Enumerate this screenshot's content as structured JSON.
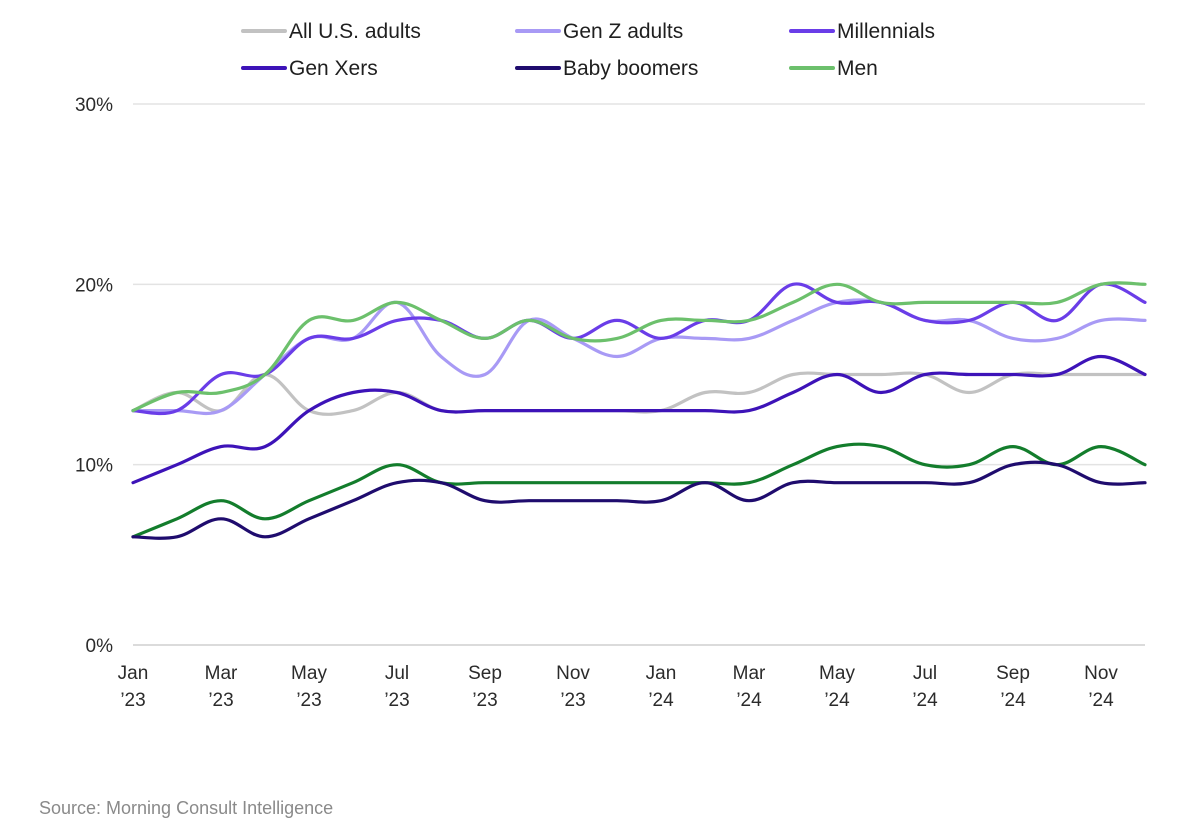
{
  "chart_data": {
    "type": "line",
    "title": "",
    "xlabel": "",
    "ylabel": "",
    "ylim": [
      0,
      30
    ],
    "yticks": [
      {
        "value": 0,
        "label": "0%"
      },
      {
        "value": 10,
        "label": "10%"
      },
      {
        "value": 20,
        "label": "20%"
      },
      {
        "value": 30,
        "label": "30%"
      }
    ],
    "x": [
      "Jan 2023",
      "Feb 2023",
      "Mar 2023",
      "Apr 2023",
      "May 2023",
      "Jun 2023",
      "Jul 2023",
      "Aug 2023",
      "Sep 2023",
      "Oct 2023",
      "Nov 2023",
      "Dec 2023",
      "Jan 2024",
      "Feb 2024",
      "Mar 2024",
      "Apr 2024",
      "May 2024",
      "Jun 2024",
      "Jul 2024",
      "Aug 2024",
      "Sep 2024",
      "Oct 2024",
      "Nov 2024",
      "Dec 2024"
    ],
    "xticks": [
      {
        "index": 0,
        "line1": "Jan",
        "line2": "’23"
      },
      {
        "index": 2,
        "line1": "Mar",
        "line2": "’23"
      },
      {
        "index": 4,
        "line1": "May",
        "line2": "’23"
      },
      {
        "index": 6,
        "line1": "Jul",
        "line2": "’23"
      },
      {
        "index": 8,
        "line1": "Sep",
        "line2": "’23"
      },
      {
        "index": 10,
        "line1": "Nov",
        "line2": "’23"
      },
      {
        "index": 12,
        "line1": "Jan",
        "line2": "’24"
      },
      {
        "index": 14,
        "line1": "Mar",
        "line2": "’24"
      },
      {
        "index": 16,
        "line1": "May",
        "line2": "’24"
      },
      {
        "index": 18,
        "line1": "Jul",
        "line2": "’24"
      },
      {
        "index": 20,
        "line1": "Sep",
        "line2": "’24"
      },
      {
        "index": 22,
        "line1": "Nov",
        "line2": "’24"
      }
    ],
    "grid": true,
    "legend_position": "top",
    "series": [
      {
        "name": "All U.S. adults",
        "color": "#c2c2c2",
        "values": [
          13,
          14,
          13,
          15,
          13,
          13,
          14,
          13,
          13,
          13,
          13,
          13,
          13,
          14,
          14,
          15,
          15,
          15,
          15,
          14,
          15,
          15,
          15,
          15
        ]
      },
      {
        "name": "Gen Z adults",
        "color": "#a89af5",
        "values": [
          13,
          13,
          13,
          15,
          17,
          17,
          19,
          16,
          15,
          18,
          17,
          16,
          17,
          17,
          17,
          18,
          19,
          19,
          18,
          18,
          17,
          17,
          18,
          18
        ]
      },
      {
        "name": "Millennials",
        "color": "#6a3de8",
        "values": [
          13,
          13,
          15,
          15,
          17,
          17,
          18,
          18,
          17,
          18,
          17,
          18,
          17,
          18,
          18,
          20,
          19,
          19,
          18,
          18,
          19,
          18,
          20,
          19
        ]
      },
      {
        "name": "Men",
        "color": "#6cc06c",
        "values": [
          13,
          14,
          14,
          15,
          18,
          18,
          19,
          18,
          17,
          18,
          17,
          17,
          18,
          18,
          18,
          19,
          20,
          19,
          19,
          19,
          19,
          19,
          20,
          20
        ]
      },
      {
        "name": "Gen Xers",
        "color": "#3d13b8",
        "values": [
          9,
          10,
          11,
          11,
          13,
          14,
          14,
          13,
          13,
          13,
          13,
          13,
          13,
          13,
          13,
          14,
          15,
          14,
          15,
          15,
          15,
          15,
          16,
          15
        ]
      },
      {
        "name": "",
        "color": "#137d2c",
        "values": [
          6,
          7,
          8,
          7,
          8,
          9,
          10,
          9,
          9,
          9,
          9,
          9,
          9,
          9,
          9,
          10,
          11,
          11,
          10,
          10,
          11,
          10,
          11,
          10
        ]
      },
      {
        "name": "Baby boomers",
        "color": "#1f0c6e",
        "values": [
          6,
          6,
          7,
          6,
          7,
          8,
          9,
          9,
          8,
          8,
          8,
          8,
          8,
          9,
          8,
          9,
          9,
          9,
          9,
          9,
          10,
          10,
          9,
          9
        ]
      }
    ]
  },
  "legend": {
    "items": [
      {
        "label": "All U.S. adults",
        "color": "#c2c2c2"
      },
      {
        "label": "Gen Z adults",
        "color": "#a89af5"
      },
      {
        "label": "Millennials",
        "color": "#6a3de8"
      },
      {
        "label": "Gen Xers",
        "color": "#3d13b8"
      },
      {
        "label": "Baby boomers",
        "color": "#1f0c6e"
      },
      {
        "label": "Men",
        "color": "#6cc06c"
      }
    ]
  },
  "source": "Source: Morning Consult Intelligence"
}
